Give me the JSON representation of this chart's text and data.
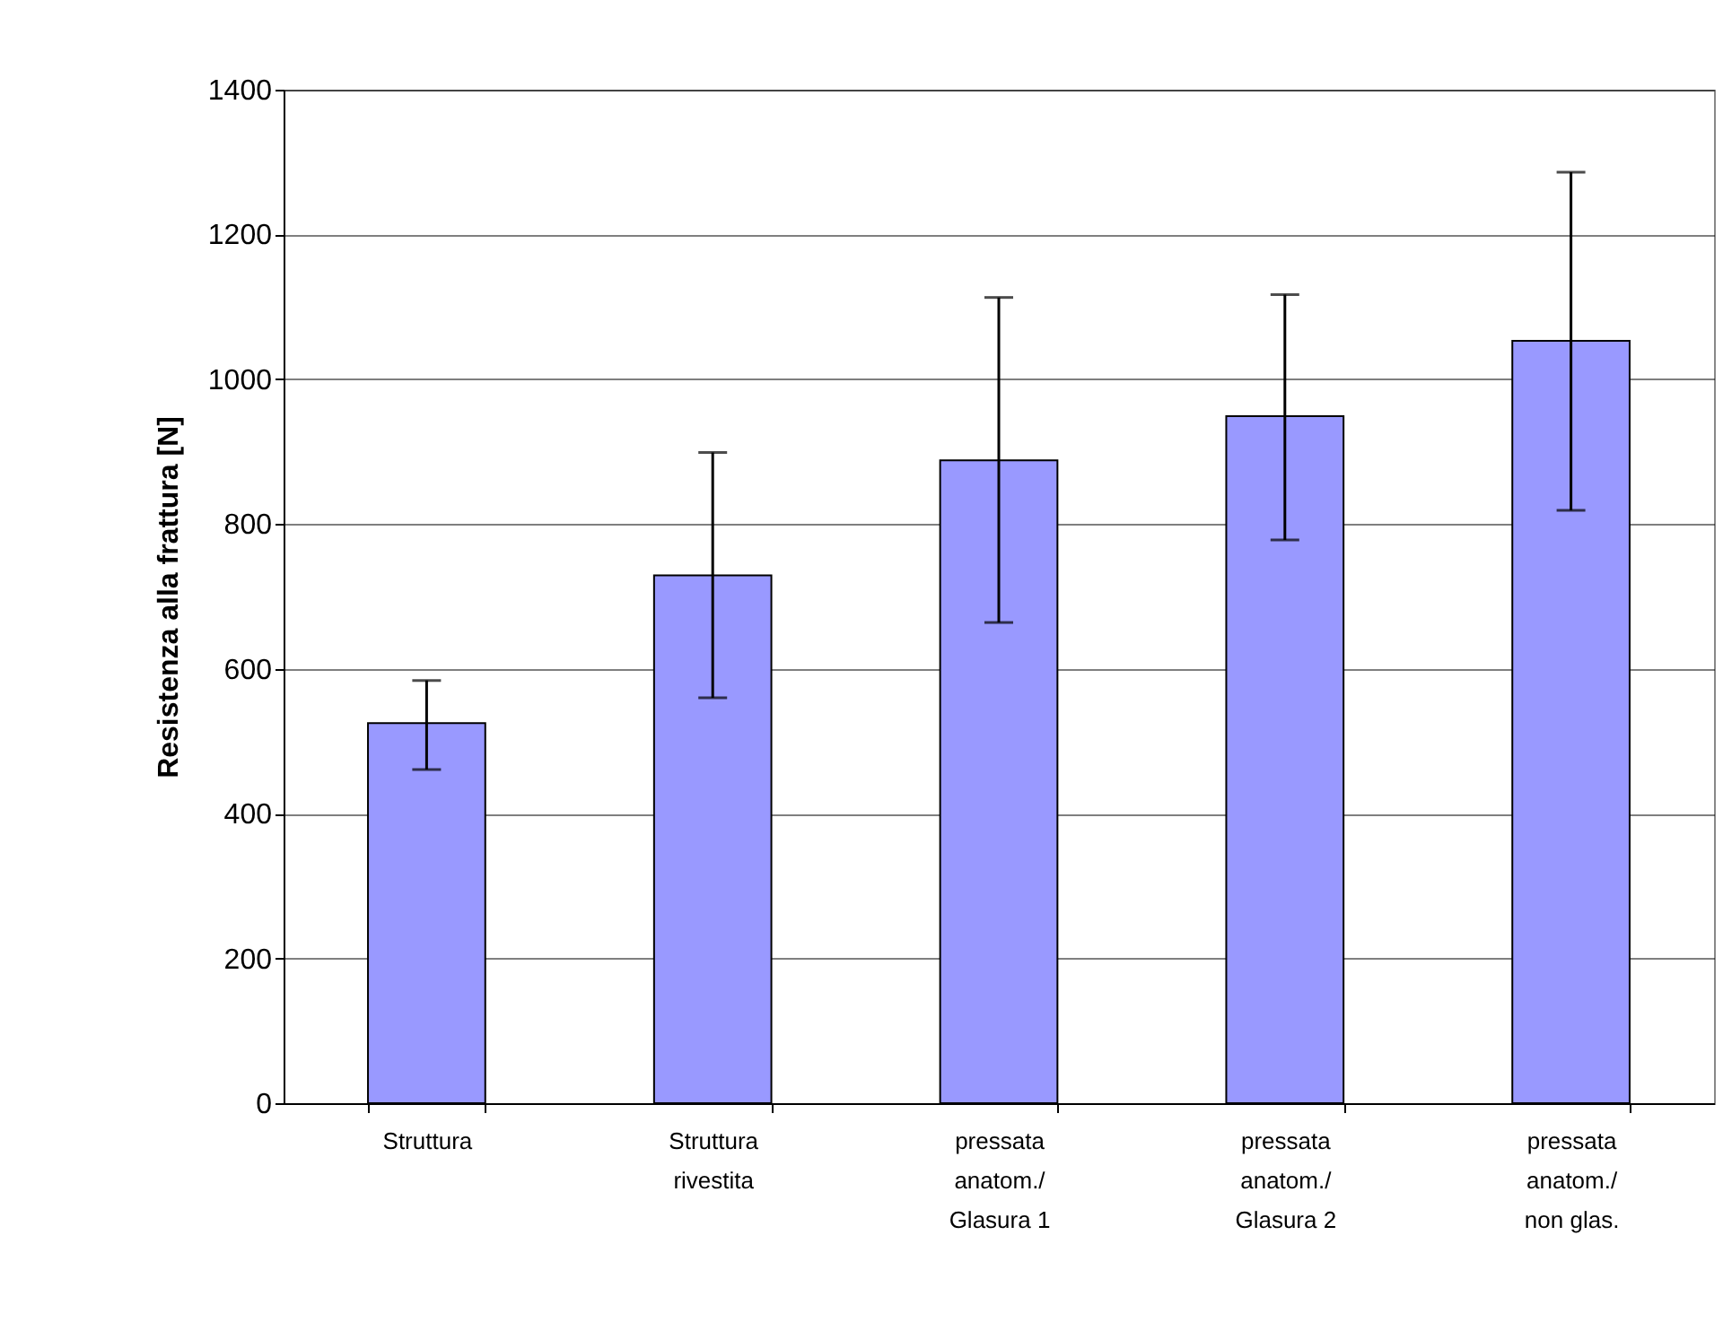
{
  "chart_data": {
    "type": "bar",
    "ylabel": "Resistenza alla frattura [N]",
    "categories": [
      "Struttura",
      "Struttura\nrivestita",
      "pressata\nanatom./\nGlasura 1",
      "pressata\nanatom./\nGlasura 2",
      "pressata\nanatom./\nnon glas."
    ],
    "values": [
      525,
      729,
      888,
      949,
      1053
    ],
    "errors": [
      [
        461,
        584
      ],
      [
        560,
        899
      ],
      [
        664,
        1113
      ],
      [
        778,
        1117
      ],
      [
        819,
        1286
      ]
    ],
    "color": "#9999ff",
    "ylim": [
      0,
      1400
    ],
    "yticks": [
      0,
      200,
      400,
      600,
      800,
      1000,
      1200,
      1400
    ],
    "grid": "y"
  }
}
